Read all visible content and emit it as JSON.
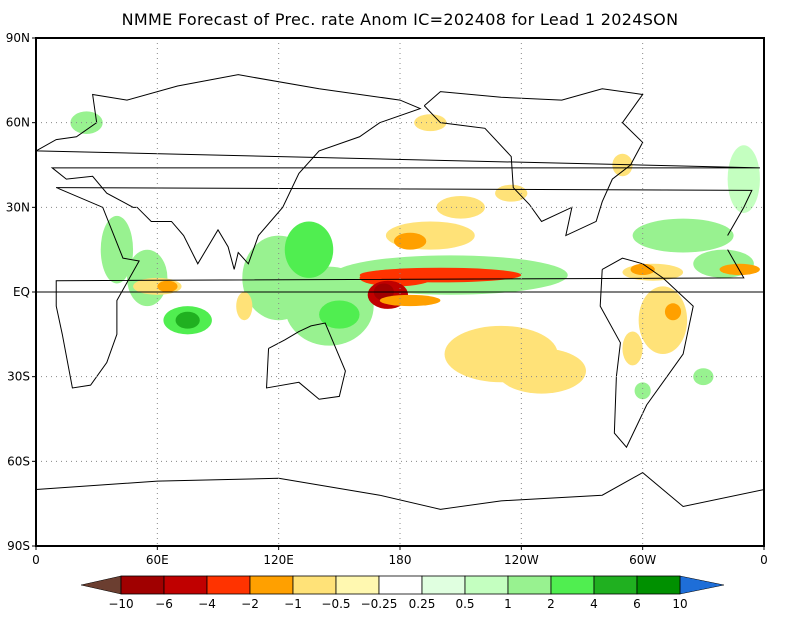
{
  "title": "NMME Forecast of Prec. rate Anom IC=202408 for Lead 1 2024SON",
  "map": {
    "projection": "cylindrical equidistant",
    "lon_range": [
      0,
      360
    ],
    "lat_range": [
      -90,
      90
    ],
    "grid": "dotted",
    "equator_line": true,
    "lat_ticks": [
      {
        "lat": 90,
        "label": "90N"
      },
      {
        "lat": 60,
        "label": "60N"
      },
      {
        "lat": 30,
        "label": "30N"
      },
      {
        "lat": 0,
        "label": "EQ"
      },
      {
        "lat": -30,
        "label": "30S"
      },
      {
        "lat": -60,
        "label": "60S"
      },
      {
        "lat": -90,
        "label": "90S"
      }
    ],
    "lon_ticks": [
      {
        "lon": 0,
        "label": "0"
      },
      {
        "lon": 60,
        "label": "60E"
      },
      {
        "lon": 120,
        "label": "120E"
      },
      {
        "lon": 180,
        "label": "180"
      },
      {
        "lon": 240,
        "label": "120W"
      },
      {
        "lon": 300,
        "label": "60W"
      },
      {
        "lon": 360,
        "label": "0"
      }
    ]
  },
  "colorbar": {
    "labels": [
      "−10",
      "−6",
      "−4",
      "−2",
      "−1",
      "−0.5",
      "−0.25",
      "0.25",
      "0.5",
      "1",
      "2",
      "4",
      "6",
      "10"
    ],
    "under_color": "#6b3e30",
    "over_color": "#1e6ed8",
    "colors": [
      "#a00000",
      "#c00000",
      "#ff3300",
      "#ffa000",
      "#ffe278",
      "#fff8b0",
      "#ffffff",
      "#e0ffe0",
      "#c4ffc0",
      "#98f290",
      "#50ee50",
      "#20b020",
      "#009000"
    ]
  }
}
